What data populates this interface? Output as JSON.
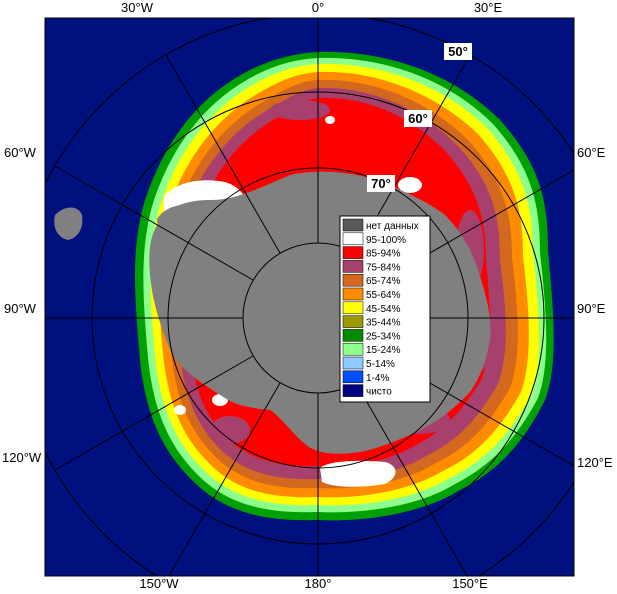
{
  "map": {
    "longitude_labels": {
      "top": [
        "30°W",
        "0°",
        "30°E"
      ],
      "left": [
        "60°W",
        "90°W",
        "120°W"
      ],
      "right": [
        "60°E",
        "90°E",
        "120°E"
      ],
      "bottom": [
        "150°W",
        "180°",
        "150°E"
      ]
    },
    "latitude_labels": [
      "50°",
      "60°",
      "70°"
    ],
    "legend": {
      "items": [
        {
          "label": "нет данных",
          "color": "#5a5a5a"
        },
        {
          "label": "95-100%",
          "color": "#ffffff"
        },
        {
          "label": "85-94%",
          "color": "#ff0000"
        },
        {
          "label": "75-84%",
          "color": "#a8406e"
        },
        {
          "label": "65-74%",
          "color": "#d2691e"
        },
        {
          "label": "55-64%",
          "color": "#ff8c00"
        },
        {
          "label": "45-54%",
          "color": "#ffff00"
        },
        {
          "label": "35-44%",
          "color": "#9a9a00"
        },
        {
          "label": "25-34%",
          "color": "#008c00"
        },
        {
          "label": "15-24%",
          "color": "#8cff8c"
        },
        {
          "label": "5-14%",
          "color": "#8ccaff"
        },
        {
          "label": "1-4%",
          "color": "#0050ff"
        },
        {
          "label": "чисто",
          "color": "#000080"
        }
      ]
    },
    "colors": {
      "ocean": "#00107e",
      "land": "#808080",
      "no_data": "#5a5a5a",
      "grid": "#aaaaaa"
    }
  }
}
